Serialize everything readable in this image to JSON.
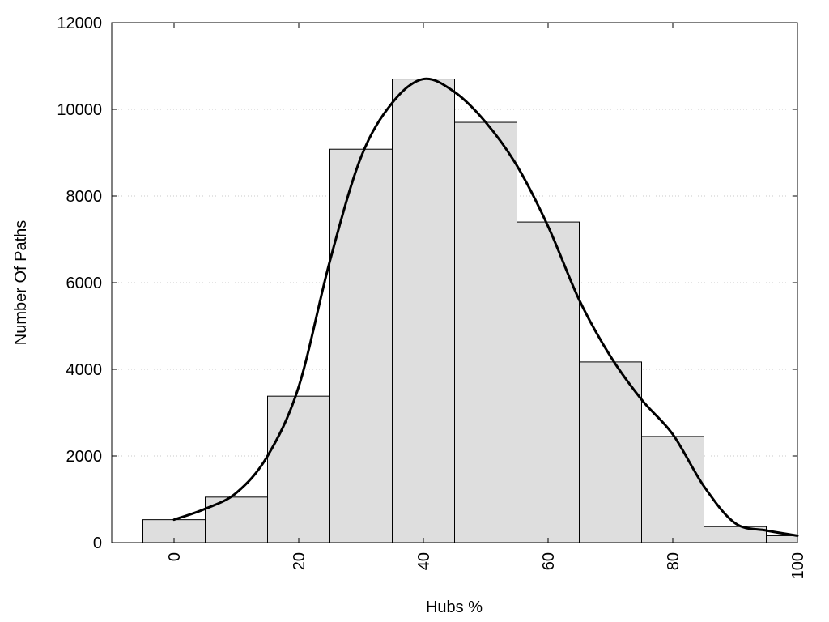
{
  "chart_data": {
    "type": "bar",
    "xlabel": "Hubs %",
    "ylabel": "Number Of Paths",
    "xlim": [
      -10,
      100
    ],
    "ylim": [
      0,
      12000
    ],
    "x_ticks": [
      0,
      20,
      40,
      60,
      80,
      100
    ],
    "y_ticks": [
      0,
      2000,
      4000,
      6000,
      8000,
      10000,
      12000
    ],
    "grid": "horizontal dotted",
    "bin_width": 10,
    "bars": [
      {
        "x": 0,
        "value": 530
      },
      {
        "x": 10,
        "value": 1050
      },
      {
        "x": 20,
        "value": 3380
      },
      {
        "x": 30,
        "value": 9080
      },
      {
        "x": 40,
        "value": 10700
      },
      {
        "x": 50,
        "value": 9700
      },
      {
        "x": 60,
        "value": 7400
      },
      {
        "x": 70,
        "value": 4170
      },
      {
        "x": 80,
        "value": 2450
      },
      {
        "x": 90,
        "value": 370
      },
      {
        "x": 100,
        "value": 160
      }
    ],
    "curve": {
      "x": [
        0,
        5,
        10,
        15,
        20,
        25,
        30,
        35,
        40,
        45,
        50,
        55,
        60,
        65,
        70,
        75,
        80,
        85,
        90,
        95,
        100
      ],
      "y": [
        530,
        780,
        1150,
        2000,
        3600,
        6500,
        8900,
        10150,
        10700,
        10400,
        9700,
        8700,
        7300,
        5600,
        4300,
        3300,
        2500,
        1300,
        450,
        280,
        160
      ]
    },
    "colors": {
      "bar_fill": "#dedede",
      "bar_stroke": "#000000",
      "curve": "#000000",
      "grid": "#c8c8c8"
    }
  }
}
